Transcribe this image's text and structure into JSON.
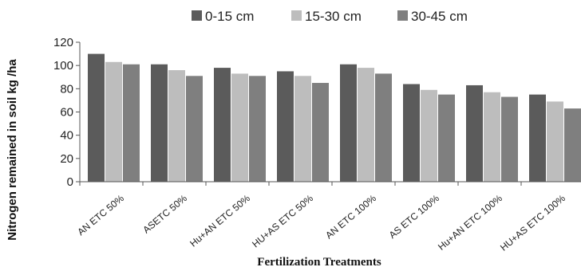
{
  "chart_data": {
    "type": "bar",
    "title": "",
    "xlabel": "Fertilization Treatments",
    "ylabel": "Nitrogen remained in soil kg /ha",
    "ylim": [
      0,
      120
    ],
    "yticks": [
      0,
      20,
      40,
      60,
      80,
      100,
      120
    ],
    "legend_position": "top",
    "grid": false,
    "categories": [
      "AN ETC 50%",
      "ASETC 50%",
      "Hu+AN ETC 50%",
      "HU+AS ETC 50%",
      "AN ETC 100%",
      "AS ETC 100%",
      "Hu+AN ETC 100%",
      "HU+AS ETC 100%"
    ],
    "series": [
      {
        "name": "0-15 cm",
        "color": "#5b5b5b",
        "values": [
          110,
          101,
          98,
          95,
          101,
          84,
          83,
          75
        ]
      },
      {
        "name": "15-30 cm",
        "color": "#bdbdbd",
        "values": [
          103,
          96,
          93,
          91,
          98,
          79,
          77,
          69
        ]
      },
      {
        "name": "30-45 cm",
        "color": "#7f7f7f",
        "values": [
          101,
          91,
          91,
          85,
          93,
          75,
          73,
          63
        ]
      }
    ]
  }
}
